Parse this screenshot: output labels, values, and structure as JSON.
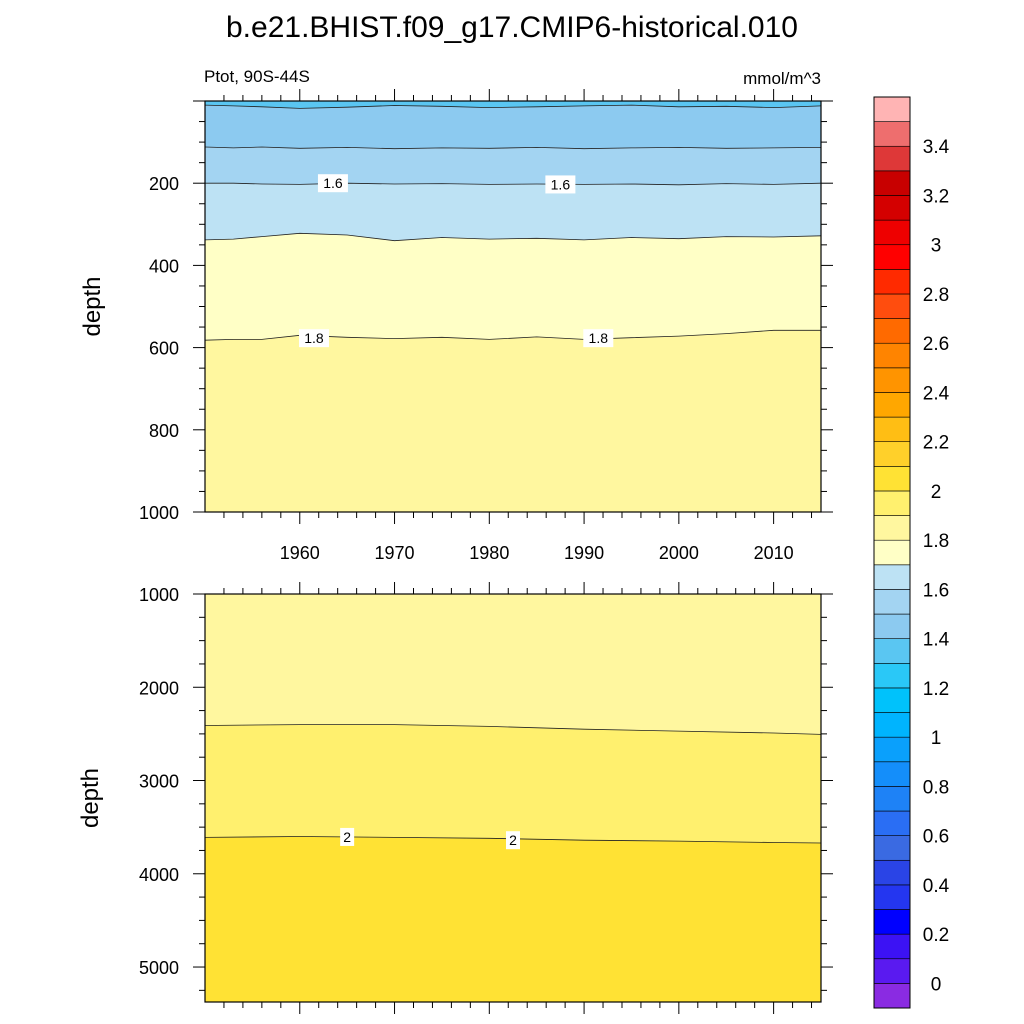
{
  "title": "b.e21.BHIST.f09_g17.CMIP6-historical.010",
  "subtitle_left": "Ptot, 90S-44S",
  "subtitle_right": "mmol/m^3",
  "chart_data": [
    {
      "type": "heatmap",
      "panel": "upper",
      "ylabel": "depth",
      "xlim": [
        1950,
        2015
      ],
      "ylim": [
        1000,
        0
      ],
      "x_ticks": [
        1960,
        1970,
        1980,
        1990,
        2000,
        2010
      ],
      "y_ticks": [
        200,
        400,
        600,
        800,
        1000
      ],
      "contour_years": [
        1950,
        1953,
        1956,
        1960,
        1965,
        1970,
        1975,
        1980,
        1985,
        1990,
        1995,
        2000,
        2005,
        2010,
        2015
      ],
      "contours": [
        {
          "level": 1.4,
          "depths": [
            10,
            12,
            14,
            18,
            15,
            11,
            13,
            16,
            14,
            12,
            10,
            14,
            13,
            16,
            12
          ]
        },
        {
          "level": 1.5,
          "depths": [
            112,
            114,
            112,
            115,
            113,
            116,
            114,
            115,
            113,
            116,
            114,
            113,
            115,
            114,
            113
          ]
        },
        {
          "level": 1.6,
          "depths": [
            200,
            200,
            202,
            203,
            200,
            202,
            201,
            203,
            202,
            203,
            202,
            204,
            201,
            203,
            200
          ]
        },
        {
          "level": 1.7,
          "depths": [
            338,
            336,
            330,
            322,
            326,
            340,
            332,
            336,
            334,
            338,
            332,
            335,
            330,
            331,
            328
          ]
        },
        {
          "level": 1.8,
          "depths": [
            582,
            580,
            580,
            570,
            575,
            578,
            575,
            580,
            574,
            580,
            576,
            572,
            566,
            558,
            558
          ]
        }
      ],
      "contour_labels": [
        {
          "text": "1.6",
          "year": 1963.5,
          "depth": 200
        },
        {
          "text": "1.6",
          "year": 1987.5,
          "depth": 203
        },
        {
          "text": "1.8",
          "year": 1961.5,
          "depth": 577
        },
        {
          "text": "1.8",
          "year": 1991.5,
          "depth": 577
        }
      ],
      "top_color": "#5ac6f2",
      "band_colors": [
        "#8ccaf0",
        "#a3d4f2",
        "#bde2f4",
        "#ffffc6",
        "#fff79f"
      ],
      "grid": false
    },
    {
      "type": "heatmap",
      "panel": "lower",
      "ylabel": "depth",
      "xlim": [
        1950,
        2015
      ],
      "ylim": [
        5375,
        1000
      ],
      "x_ticks": [
        1960,
        1970,
        1980,
        1990,
        2000,
        2010
      ],
      "y_ticks": [
        1000,
        2000,
        3000,
        4000,
        5000
      ],
      "contour_years": [
        1950,
        1960,
        1970,
        1980,
        1990,
        2000,
        2010,
        2015
      ],
      "contours": [
        {
          "level": 1.9,
          "depths": [
            2410,
            2400,
            2400,
            2420,
            2450,
            2470,
            2490,
            2505
          ]
        },
        {
          "level": 2.0,
          "depths": [
            3610,
            3600,
            3610,
            3620,
            3640,
            3650,
            3665,
            3670
          ]
        }
      ],
      "contour_labels": [
        {
          "text": "2",
          "year": 1965,
          "depth": 3605
        },
        {
          "text": "2",
          "year": 1982.5,
          "depth": 3640
        }
      ],
      "top_color": "#fff79f",
      "band_colors": [
        "#fff06e",
        "#ffe234"
      ],
      "grid": false
    }
  ],
  "colorbar": {
    "levels": [
      0,
      0.1,
      0.2,
      0.3,
      0.4,
      0.5,
      0.6,
      0.7,
      0.8,
      0.9,
      1,
      1.1,
      1.2,
      1.3,
      1.4,
      1.5,
      1.6,
      1.7,
      1.8,
      1.9,
      2,
      2.1,
      2.2,
      2.3,
      2.4,
      2.5,
      2.6,
      2.7,
      2.8,
      2.9,
      3,
      3.1,
      3.2,
      3.3,
      3.4,
      3.5
    ],
    "colors": [
      "#8a2be2",
      "#5a1af0",
      "#3c12f4",
      "#0000ff",
      "#2436f0",
      "#2a44e6",
      "#3a6ae2",
      "#2a6ef4",
      "#1e82f6",
      "#148efa",
      "#0aa0fc",
      "#00b4fe",
      "#00c2fb",
      "#2ac8f7",
      "#5ac6f2",
      "#8ccaf0",
      "#a3d4f2",
      "#bde2f4",
      "#ffffc6",
      "#fff79f",
      "#fff06e",
      "#ffe234",
      "#ffd02a",
      "#ffbe14",
      "#ffa700",
      "#ff9400",
      "#ff8400",
      "#ff6a00",
      "#ff4d0e",
      "#ff2a00",
      "#ff0000",
      "#ee0000",
      "#d40000",
      "#c80000",
      "#de3838",
      "#ee6e6e",
      "#ffb4b4"
    ],
    "tick_labels": [
      "0",
      "0.2",
      "0.4",
      "0.6",
      "0.8",
      "1",
      "1.2",
      "1.4",
      "1.6",
      "1.8",
      "2",
      "2.2",
      "2.4",
      "2.6",
      "2.8",
      "3",
      "3.2",
      "3.4"
    ]
  }
}
